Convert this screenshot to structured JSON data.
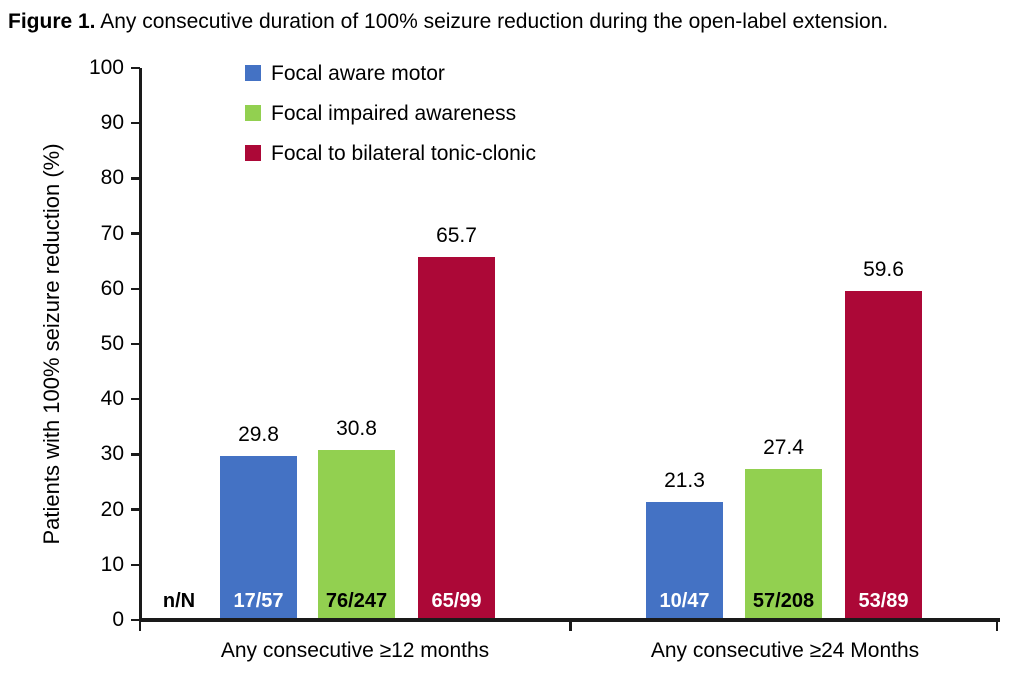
{
  "title": {
    "prefix": "Figure 1.",
    "rest": " Any consecutive duration of 100% seizure reduction during the open-label extension."
  },
  "chart_data": {
    "type": "bar",
    "title": "Figure 1. Any consecutive duration of 100% seizure reduction during the open-label extension.",
    "ylabel": "Patients with 100% seizure reduction (%)",
    "xlabel": "",
    "ylim": [
      0,
      100
    ],
    "yticks": [
      0,
      10,
      20,
      30,
      40,
      50,
      60,
      70,
      80,
      90,
      100
    ],
    "grid": false,
    "legend_position": "top-left-inside",
    "categories": [
      "Any consecutive ≥12 months",
      "Any consecutive ≥24 Months"
    ],
    "n_label": "n/N",
    "series": [
      {
        "name": "Focal aware motor",
        "color": "#4472C4",
        "fraction_text_color": "#FFFFFF",
        "values": [
          29.8,
          21.3
        ],
        "fractions": [
          "17/57",
          "10/47"
        ]
      },
      {
        "name": "Focal impaired awareness",
        "color": "#92D050",
        "fraction_text_color": "#000000",
        "values": [
          30.8,
          27.4
        ],
        "fractions": [
          "76/247",
          "57/208"
        ]
      },
      {
        "name": "Focal to bilateral tonic-clonic",
        "color": "#AC0837",
        "fraction_text_color": "#FFFFFF",
        "values": [
          65.7,
          59.6
        ],
        "fractions": [
          "65/99",
          "53/89"
        ]
      }
    ]
  }
}
